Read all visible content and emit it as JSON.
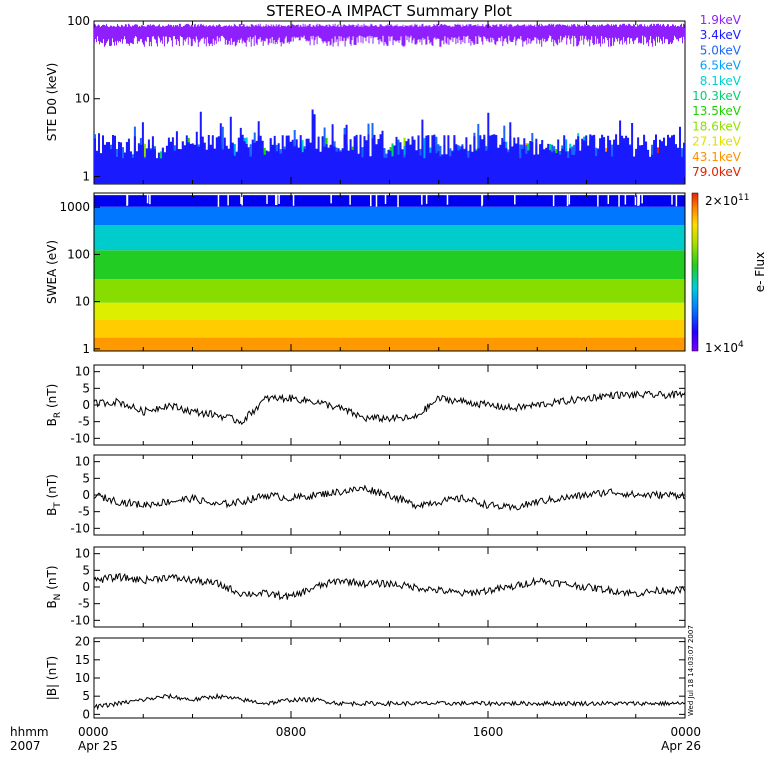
{
  "chart_data": {
    "title": "STEREO-A IMPACT Summary Plot",
    "x_axis": {
      "ticks": [
        "0000",
        "0800",
        "1600",
        "0000"
      ],
      "tick_dates": [
        "Apr 25",
        "",
        "",
        "Apr 26"
      ],
      "label_top": "hhmm",
      "label_bottom": "2007",
      "range_hours": [
        0,
        24
      ]
    },
    "timestamp": "Wed Jul 18 14:03:07 2007",
    "panels": [
      {
        "id": "ste",
        "type": "line",
        "ylabel": "STE D0 (keV)",
        "yscale": "log",
        "ylim": [
          0.8,
          100
        ],
        "yticks": [
          "1",
          "10",
          "100"
        ],
        "legend_placement": "right",
        "series": [
          {
            "name": "1.9keV",
            "color": "#8f1fff",
            "level": [
              62,
              88
            ]
          },
          {
            "name": "3.4keV",
            "color": "#1a1aff",
            "level": [
              1.7,
              3.5
            ]
          },
          {
            "name": "5.0keV",
            "color": "#1a66ff",
            "level": [
              1.6,
              2.6
            ]
          },
          {
            "name": "6.5keV",
            "color": "#00a0ff",
            "level": [
              1.3,
              1.8
            ]
          },
          {
            "name": "8.1keV",
            "color": "#00d0d0",
            "level": [
              1.2,
              1.7
            ]
          },
          {
            "name": "10.3keV",
            "color": "#00d070",
            "level": [
              1.2,
              1.6
            ]
          },
          {
            "name": "13.5keV",
            "color": "#20d000",
            "level": [
              1.1,
              1.6
            ]
          },
          {
            "name": "18.6keV",
            "color": "#90e000",
            "level": [
              1.1,
              1.5
            ]
          },
          {
            "name": "27.1keV",
            "color": "#e0e000",
            "level": [
              1.0,
              1.4
            ]
          },
          {
            "name": "43.1keV",
            "color": "#ff9000",
            "level": [
              1.0,
              1.3
            ]
          },
          {
            "name": "79.0keV",
            "color": "#e02000",
            "level": [
              1.0,
              1.2
            ]
          }
        ]
      },
      {
        "id": "swea",
        "type": "heatmap",
        "ylabel": "SWEA (eV)",
        "yscale": "log",
        "ylim": [
          0.9,
          2000
        ],
        "yticks": [
          "1",
          "10",
          "100",
          "1000"
        ],
        "colorbar": {
          "label": "e- Flux",
          "max": "2x10^11",
          "min": "1x10^4",
          "max_base": "2×10",
          "max_exp": "11",
          "min_base": "1×10",
          "min_exp": "4"
        },
        "color_by_energy": [
          {
            "energy": 1,
            "color": "#ff9900"
          },
          {
            "energy": 3,
            "color": "#ffcc00"
          },
          {
            "energy": 6,
            "color": "#ddee00"
          },
          {
            "energy": 15,
            "color": "#88dd00"
          },
          {
            "energy": 60,
            "color": "#22cc22"
          },
          {
            "energy": 250,
            "color": "#00cccc"
          },
          {
            "energy": 700,
            "color": "#0077ff"
          },
          {
            "energy": 1500,
            "color": "#0000ee"
          }
        ]
      },
      {
        "id": "br",
        "type": "line",
        "ylabel": "B",
        "ysub": "R",
        "yunit": " (nT)",
        "ylim": [
          -12,
          12
        ],
        "yticks": [
          10,
          5,
          0,
          -5,
          -10
        ],
        "series": [
          {
            "color": "#000000",
            "x_hours": [
              0,
              1,
              2,
              3,
              4,
              5,
              6,
              7,
              8,
              9,
              10,
              11,
              12,
              13,
              14,
              15,
              16,
              17,
              18,
              19,
              20,
              21,
              22,
              23,
              24
            ],
            "y": [
              0.5,
              1,
              -2,
              0,
              -2,
              -3,
              -5,
              2,
              2,
              1,
              -1,
              -4,
              -4,
              -4,
              2,
              1,
              0,
              -1,
              0,
              1,
              2,
              3,
              3,
              3,
              3
            ]
          }
        ]
      },
      {
        "id": "bt",
        "type": "line",
        "ylabel": "B",
        "ysub": "T",
        "yunit": " (nT)",
        "ylim": [
          -12,
          12
        ],
        "yticks": [
          10,
          5,
          0,
          -5,
          -10
        ],
        "series": [
          {
            "color": "#000000",
            "x_hours": [
              0,
              1,
              2,
              3,
              4,
              5,
              6,
              7,
              8,
              9,
              10,
              11,
              12,
              13,
              14,
              15,
              16,
              17,
              18,
              19,
              20,
              21,
              22,
              23,
              24
            ],
            "y": [
              0,
              -2,
              -3,
              -2,
              -1,
              -3,
              -2,
              0,
              -1,
              0,
              1,
              2,
              0,
              -3,
              -2,
              -1,
              -3,
              -4,
              -2,
              -1,
              0,
              1,
              0,
              0,
              0
            ]
          }
        ]
      },
      {
        "id": "bn",
        "type": "line",
        "ylabel": "B",
        "ysub": "N",
        "yunit": " (nT)",
        "ylim": [
          -12,
          12
        ],
        "yticks": [
          10,
          5,
          0,
          -5,
          -10
        ],
        "series": [
          {
            "color": "#000000",
            "x_hours": [
              0,
              1,
              2,
              3,
              4,
              5,
              6,
              7,
              8,
              9,
              10,
              11,
              12,
              13,
              14,
              15,
              16,
              17,
              18,
              19,
              20,
              21,
              22,
              23,
              24
            ],
            "y": [
              2,
              3,
              2,
              3,
              2,
              1,
              -2,
              -2,
              -3,
              0,
              2,
              1,
              1,
              0,
              -1,
              -2,
              -1,
              0,
              2,
              1,
              0,
              -1,
              -2,
              -1,
              -1
            ]
          }
        ]
      },
      {
        "id": "bmag",
        "type": "line",
        "ylabel": "|B| (nT)",
        "ylim": [
          -1,
          21
        ],
        "yticks": [
          20,
          15,
          10,
          5,
          0
        ],
        "series": [
          {
            "color": "#000000",
            "x_hours": [
              0,
              1,
              2,
              3,
              4,
              5,
              6,
              7,
              8,
              9,
              10,
              11,
              12,
              13,
              14,
              15,
              16,
              17,
              18,
              19,
              20,
              21,
              22,
              23,
              24
            ],
            "y": [
              2,
              3,
              4,
              5,
              4,
              5,
              4,
              3,
              4,
              4,
              3,
              3,
              3,
              3,
              3,
              3,
              3,
              3,
              3,
              3,
              3,
              3,
              3,
              3,
              3
            ]
          }
        ]
      }
    ]
  }
}
